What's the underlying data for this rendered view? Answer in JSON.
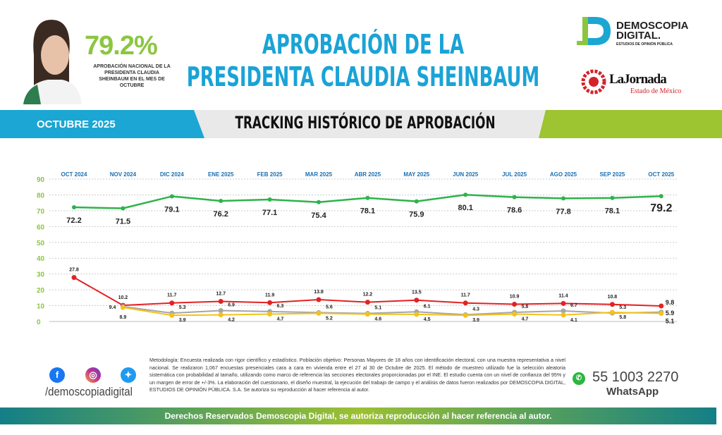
{
  "header": {
    "approval_pct": "79.2%",
    "approval_caption": "APROBACIÓN NACIONAL DE LA PRESIDENTA CLAUDIA SHEINBAUM EN EL MES DE OCTUBRE",
    "title_line1": "APROBACIÓN DE LA",
    "title_line2": "PRESIDENTA CLAUDIA SHEINBAUM",
    "logo1_name": "DEMOSCOPIA DIGITAL.",
    "logo1_sub": "ESTUDIOS DE OPINIÓN PÚBLICA",
    "logo2_name": "LaJornada",
    "logo2_sub": "Estado de México"
  },
  "band": {
    "month": "OCTUBRE 2025",
    "subtitle": "TRACKING HISTÓRICO DE APROBACIÓN"
  },
  "chart_data": {
    "type": "line",
    "categories": [
      "OCT 2024",
      "NOV 2024",
      "DIC 2024",
      "ENE 2025",
      "FEB 2025",
      "MAR 2025",
      "ABR 2025",
      "MAY 2025",
      "JUN 2025",
      "JUL 2025",
      "AGO 2025",
      "SEP 2025",
      "OCT 2025"
    ],
    "ylim": [
      0,
      90
    ],
    "yticks": [
      0,
      10,
      20,
      30,
      40,
      50,
      60,
      70,
      80,
      90
    ],
    "grid": true,
    "series": [
      {
        "color": "#2db34a",
        "values": [
          72.2,
          71.5,
          79.1,
          76.2,
          77.1,
          75.4,
          78.1,
          75.9,
          80.1,
          78.6,
          77.8,
          78.1,
          79.2
        ]
      },
      {
        "color": "#e32222",
        "values": [
          27.8,
          10.2,
          11.7,
          12.7,
          11.9,
          13.8,
          12.2,
          13.5,
          11.7,
          10.9,
          11.4,
          10.8,
          9.8
        ]
      },
      {
        "color": "#a6a6a6",
        "values": [
          null,
          9.4,
          5.3,
          6.9,
          6.3,
          5.6,
          5.1,
          6.1,
          4.3,
          5.8,
          6.7,
          5.3,
          5.9
        ]
      },
      {
        "color": "#f2c21b",
        "values": [
          null,
          8.9,
          3.9,
          4.2,
          4.7,
          5.2,
          4.6,
          4.5,
          3.9,
          4.7,
          4.1,
          5.8,
          5.1
        ]
      }
    ]
  },
  "footer": {
    "handle": "/demoscopiadigital",
    "methodology": "Metodología: Encuesta realizada con rigor científico y estadístico. Población objetivo: Personas Mayores de 18 años con identificación electoral, con una muestra representativa a nivel nacional. Se realizaron 1,067 encuestas presenciales cara a cara en vivienda entre el 27 al 30 de Octubre de 2025. El método de muestreo utilizado fue la selección aleatoria sistemática con probabilidad al tamaño, utilizando como marco de referencia las secciones electorales proporcionadas por el INE. El estudio cuenta con un nivel de confianza del 95% y un margen de error de +/-3%. La elaboración del cuestionario, el diseño muestral, la ejecución del trabajo de campo y el análisis de datos fueron realizados por DEMOSCOPIA DIGITAL, ESTUDIOS DE OPINIÓN PÚBLICA. S.A. Se autoriza su reproducción al hacer referencia al autor.",
    "phone": "55 1003 2270",
    "whatsapp": "WhatsApp",
    "rights": "Derechos Reservados Demoscopia Digital, se autoriza reproducción al hacer referencia al autor."
  },
  "colors": {
    "blue": "#1ba6d3",
    "green": "#9dc431",
    "approval": "#8cc63f"
  }
}
